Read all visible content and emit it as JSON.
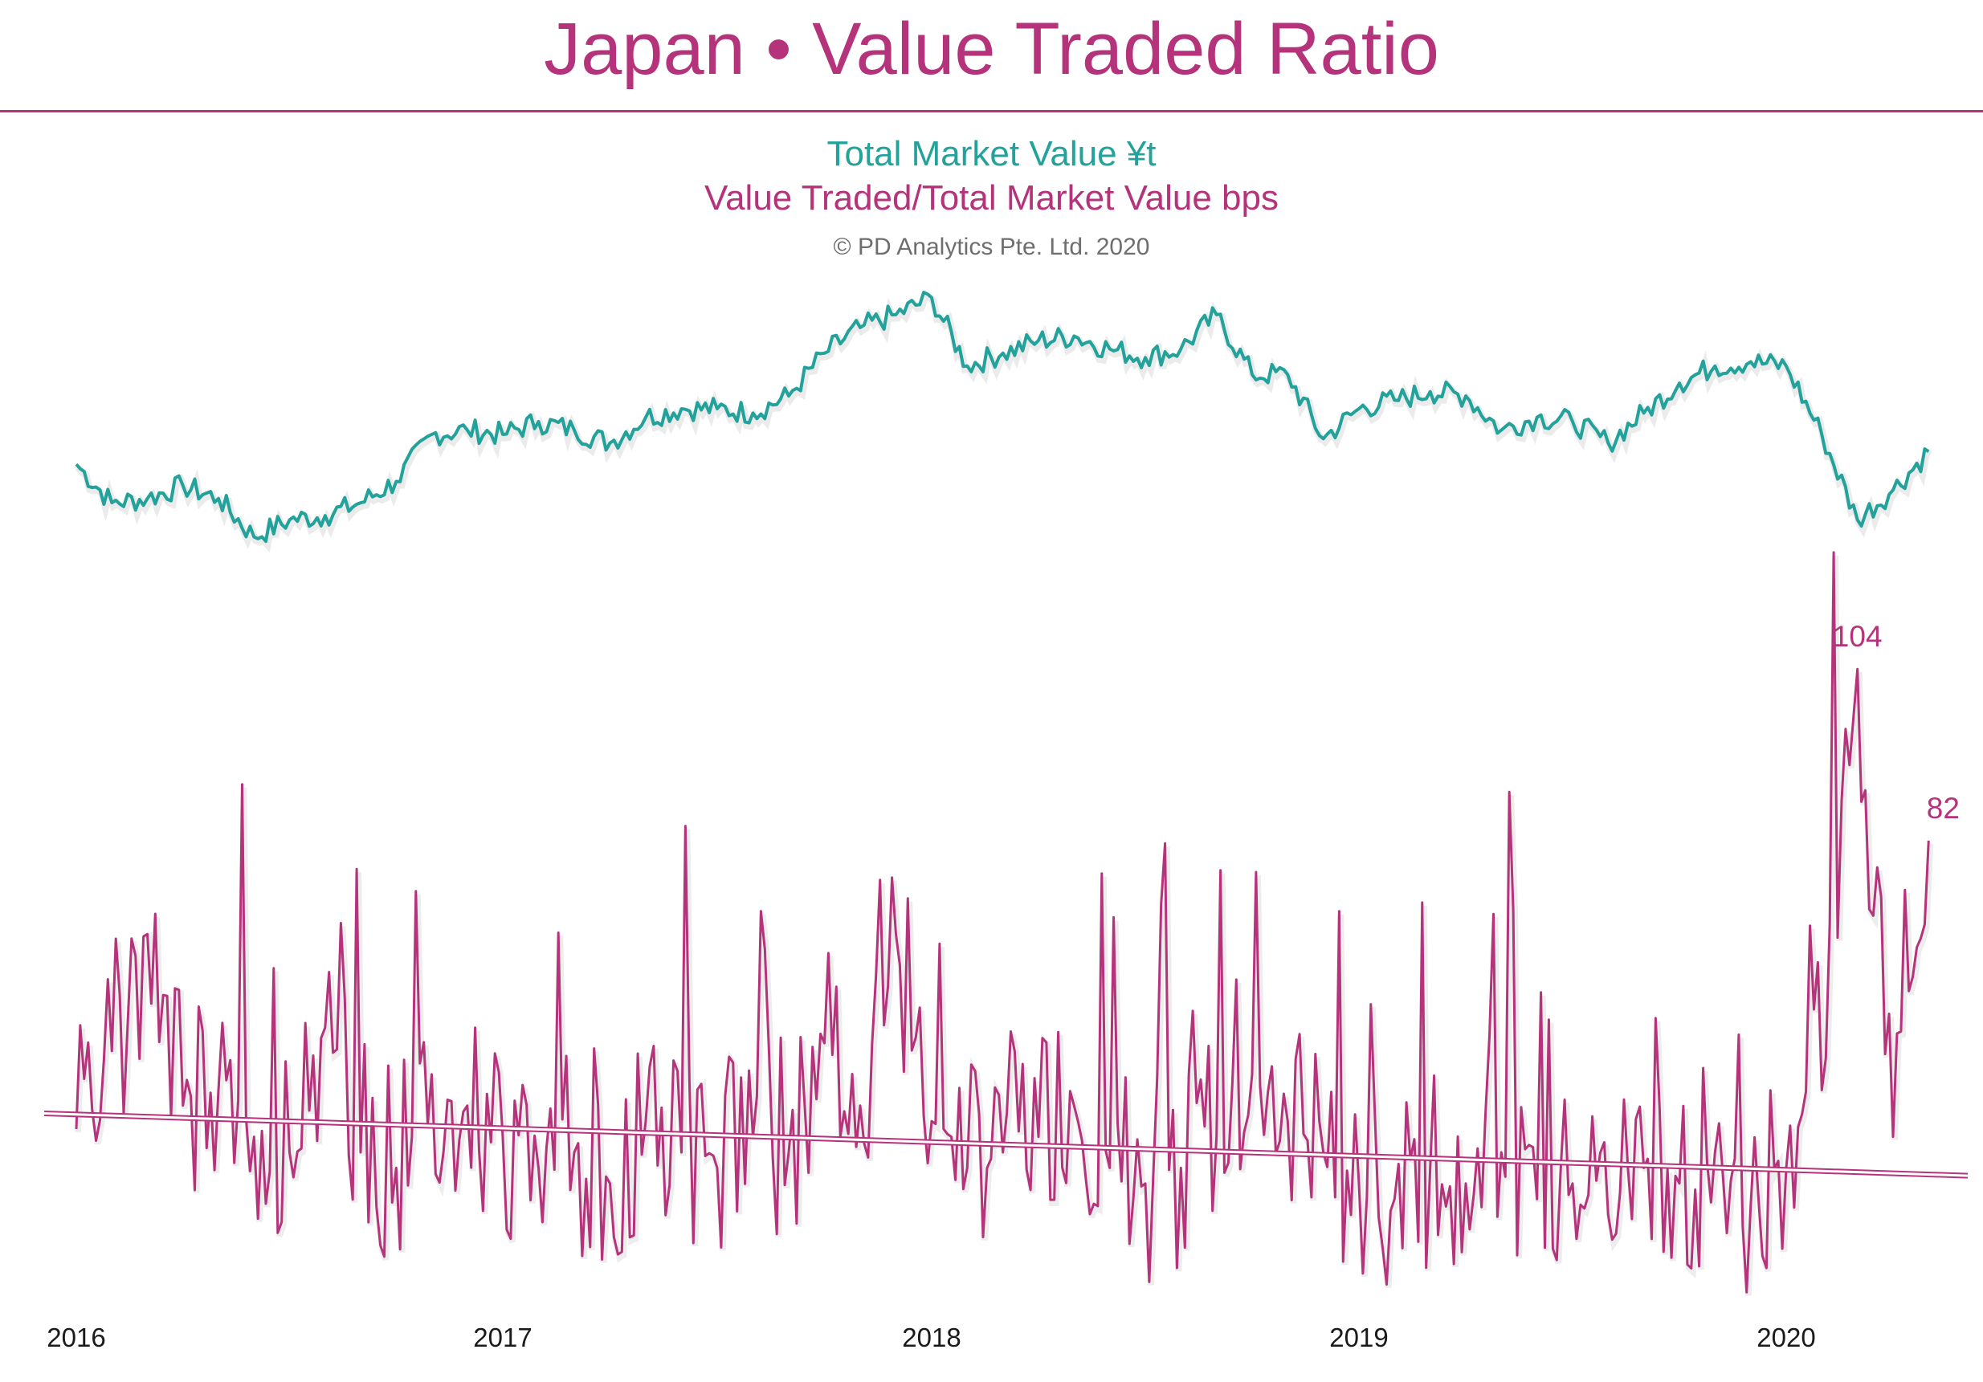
{
  "title": "Japan • Value Traded Ratio",
  "legend": {
    "series1": "Total Market Value ¥t",
    "series2": "Value Traded/Total Market Value bps"
  },
  "copyright": "© PD Analytics Pte. Ltd. 2020",
  "colors": {
    "title": "#b5337a",
    "mv": "#22a29a",
    "ratio": "#b5337a",
    "tick": "#1a1a1a"
  },
  "chart_data": {
    "type": "line",
    "title": "Japan • Value Traded Ratio",
    "x_ticks": [
      "2016",
      "2017",
      "2018",
      "2019",
      "2020"
    ],
    "x_range": [
      "2016-01",
      "2020-06"
    ],
    "grid": false,
    "legend_placement": "top-center",
    "series": [
      {
        "name": "Total Market Value ¥t",
        "axis": "none",
        "dates": [
          "2016-01",
          "2016-02",
          "2016-03",
          "2016-04",
          "2016-05",
          "2016-06",
          "2016-07",
          "2016-08",
          "2016-09",
          "2016-10",
          "2016-11",
          "2016-12",
          "2017-01",
          "2017-02",
          "2017-03",
          "2017-04",
          "2017-05",
          "2017-06",
          "2017-07",
          "2017-08",
          "2017-09",
          "2017-10",
          "2017-11",
          "2017-12",
          "2018-01",
          "2018-02",
          "2018-03",
          "2018-04",
          "2018-05",
          "2018-06",
          "2018-07",
          "2018-08",
          "2018-09",
          "2018-10",
          "2018-11",
          "2018-12",
          "2019-01",
          "2019-02",
          "2019-03",
          "2019-04",
          "2019-05",
          "2019-06",
          "2019-07",
          "2019-08",
          "2019-09",
          "2019-10",
          "2019-11",
          "2019-12",
          "2020-01",
          "2020-02",
          "2020-03",
          "2020-04",
          "2020-05"
        ],
        "values": [
          585,
          540,
          545,
          560,
          545,
          500,
          520,
          525,
          540,
          565,
          620,
          625,
          620,
          635,
          625,
          610,
          640,
          650,
          650,
          645,
          665,
          715,
          745,
          760,
          780,
          700,
          715,
          730,
          735,
          720,
          710,
          720,
          760,
          690,
          690,
          615,
          650,
          660,
          670,
          665,
          625,
          640,
          635,
          610,
          645,
          680,
          700,
          705,
          700,
          620,
          520,
          555,
          600
        ]
      },
      {
        "name": "Value Traded/Total Market Value bps",
        "axis": "none",
        "dates": [
          "2016-01",
          "2016-02",
          "2016-03",
          "2016-04",
          "2016-05",
          "2016-06",
          "2016-07",
          "2016-08",
          "2016-09",
          "2016-10",
          "2016-11",
          "2016-12",
          "2017-01",
          "2017-02",
          "2017-03",
          "2017-04",
          "2017-05",
          "2017-06",
          "2017-07",
          "2017-08",
          "2017-09",
          "2017-10",
          "2017-11",
          "2017-12",
          "2018-01",
          "2018-02",
          "2018-03",
          "2018-04",
          "2018-05",
          "2018-06",
          "2018-07",
          "2018-08",
          "2018-09",
          "2018-10",
          "2018-11",
          "2018-12",
          "2019-01",
          "2019-02",
          "2019-03",
          "2019-04",
          "2019-05",
          "2019-06",
          "2019-07",
          "2019-08",
          "2019-09",
          "2019-10",
          "2019-11",
          "2019-12",
          "2020-01",
          "2020-02",
          "2020-03",
          "2020-04",
          "2020-05"
        ],
        "values": [
          45,
          55,
          70,
          48,
          50,
          44,
          42,
          58,
          42,
          40,
          52,
          48,
          44,
          40,
          42,
          38,
          46,
          42,
          40,
          44,
          42,
          56,
          48,
          70,
          46,
          40,
          42,
          44,
          48,
          40,
          38,
          40,
          44,
          52,
          46,
          42,
          38,
          36,
          40,
          38,
          42,
          36,
          38,
          34,
          40,
          38,
          42,
          35,
          40,
          50,
          104,
          44,
          82
        ],
        "data_labels": [
          {
            "date": "2020-03",
            "label": "104"
          },
          {
            "date": "2020-05",
            "label": "82"
          }
        ]
      }
    ],
    "trendline": {
      "series": "Value Traded/Total Market Value bps",
      "start": 47,
      "end": 39
    }
  }
}
